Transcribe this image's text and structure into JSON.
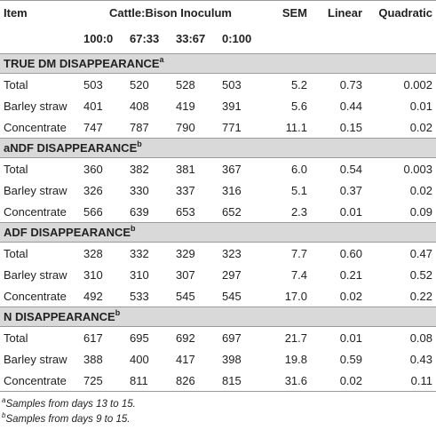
{
  "header": {
    "item": "Item",
    "group": "Cattle:Bison Inoculum",
    "sem": "SEM",
    "linear": "Linear",
    "quadratic": "Quadratic",
    "ratios": [
      "100:0",
      "67:33",
      "33:67",
      "0:100"
    ]
  },
  "sections": [
    {
      "title": "TRUE DM DISAPPEARANCE",
      "sup": "a",
      "rows": [
        {
          "label": "Total",
          "v1": "503",
          "v2": "520",
          "v3": "528",
          "v4": "503",
          "sem": "5.2",
          "linear": "0.73",
          "quadratic": "0.002"
        },
        {
          "label": "Barley straw",
          "v1": "401",
          "v2": "408",
          "v3": "419",
          "v4": "391",
          "sem": "5.6",
          "linear": "0.44",
          "quadratic": "0.01"
        },
        {
          "label": "Concentrate",
          "v1": "747",
          "v2": "787",
          "v3": "790",
          "v4": "771",
          "sem": "11.1",
          "linear": "0.15",
          "quadratic": "0.02"
        }
      ]
    },
    {
      "title": "aNDF DISAPPEARANCE",
      "sup": "b",
      "rows": [
        {
          "label": "Total",
          "v1": "360",
          "v2": "382",
          "v3": "381",
          "v4": "367",
          "sem": "6.0",
          "linear": "0.54",
          "quadratic": "0.003"
        },
        {
          "label": "Barley straw",
          "v1": "326",
          "v2": "330",
          "v3": "337",
          "v4": "316",
          "sem": "5.1",
          "linear": "0.37",
          "quadratic": "0.02"
        },
        {
          "label": "Concentrate",
          "v1": "566",
          "v2": "639",
          "v3": "653",
          "v4": "652",
          "sem": "2.3",
          "linear": "0.01",
          "quadratic": "0.09"
        }
      ]
    },
    {
      "title": "ADF DISAPPEARANCE",
      "sup": "b",
      "rows": [
        {
          "label": "Total",
          "v1": "328",
          "v2": "332",
          "v3": "329",
          "v4": "323",
          "sem": "7.7",
          "linear": "0.60",
          "quadratic": "0.47"
        },
        {
          "label": "Barley straw",
          "v1": "310",
          "v2": "310",
          "v3": "307",
          "v4": "297",
          "sem": "7.4",
          "linear": "0.21",
          "quadratic": "0.52"
        },
        {
          "label": "Concentrate",
          "v1": "492",
          "v2": "533",
          "v3": "545",
          "v4": "545",
          "sem": "17.0",
          "linear": "0.02",
          "quadratic": "0.22"
        }
      ]
    },
    {
      "title": "N DISAPPEARANCE",
      "sup": "b",
      "rows": [
        {
          "label": "Total",
          "v1": "617",
          "v2": "695",
          "v3": "692",
          "v4": "697",
          "sem": "21.7",
          "linear": "0.01",
          "quadratic": "0.08"
        },
        {
          "label": "Barley straw",
          "v1": "388",
          "v2": "400",
          "v3": "417",
          "v4": "398",
          "sem": "19.8",
          "linear": "0.59",
          "quadratic": "0.43"
        },
        {
          "label": "Concentrate",
          "v1": "725",
          "v2": "811",
          "v3": "826",
          "v4": "815",
          "sem": "31.6",
          "linear": "0.02",
          "quadratic": "0.11"
        }
      ]
    }
  ],
  "footnotes": [
    {
      "mark": "a",
      "text": "Samples from days 13 to 15."
    },
    {
      "mark": "b",
      "text": "Samples from days 9 to 15."
    }
  ]
}
